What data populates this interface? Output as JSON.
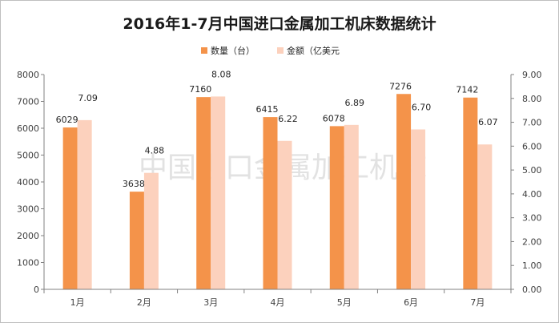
{
  "chart_data": {
    "type": "bar",
    "title": "2016年1-7月中国进口金属加工机床数据统计",
    "watermark": "中国进口金属加工机床",
    "categories": [
      "1月",
      "2月",
      "3月",
      "4月",
      "5月",
      "6月",
      "7月"
    ],
    "series": [
      {
        "name": "数量（台）",
        "axis": "left",
        "color": "#f4934a",
        "values": [
          6029,
          3638,
          7160,
          6415,
          6078,
          7276,
          7142
        ],
        "labels": [
          "6029",
          "3638",
          "7160",
          "6415",
          "6078",
          "7276",
          "7142"
        ]
      },
      {
        "name": "金额（亿美元",
        "axis": "right",
        "color": "#fcd1bd",
        "values": [
          7.09,
          4.88,
          8.08,
          6.22,
          6.89,
          6.7,
          6.07
        ],
        "labels": [
          "7.09",
          "4.88",
          "8.08",
          "6.22",
          "6.89",
          "6.70",
          "6.07"
        ]
      }
    ],
    "y_left": {
      "min": 0,
      "max": 8000,
      "ticks": [
        "0",
        "1000",
        "2000",
        "3000",
        "4000",
        "5000",
        "6000",
        "7000",
        "8000"
      ]
    },
    "y_right": {
      "min": 0,
      "max": 9,
      "ticks": [
        "0.00",
        "1.00",
        "2.00",
        "3.00",
        "4.00",
        "5.00",
        "6.00",
        "7.00",
        "8.00",
        "9.00"
      ]
    },
    "legend": "top-right",
    "grid": false
  }
}
